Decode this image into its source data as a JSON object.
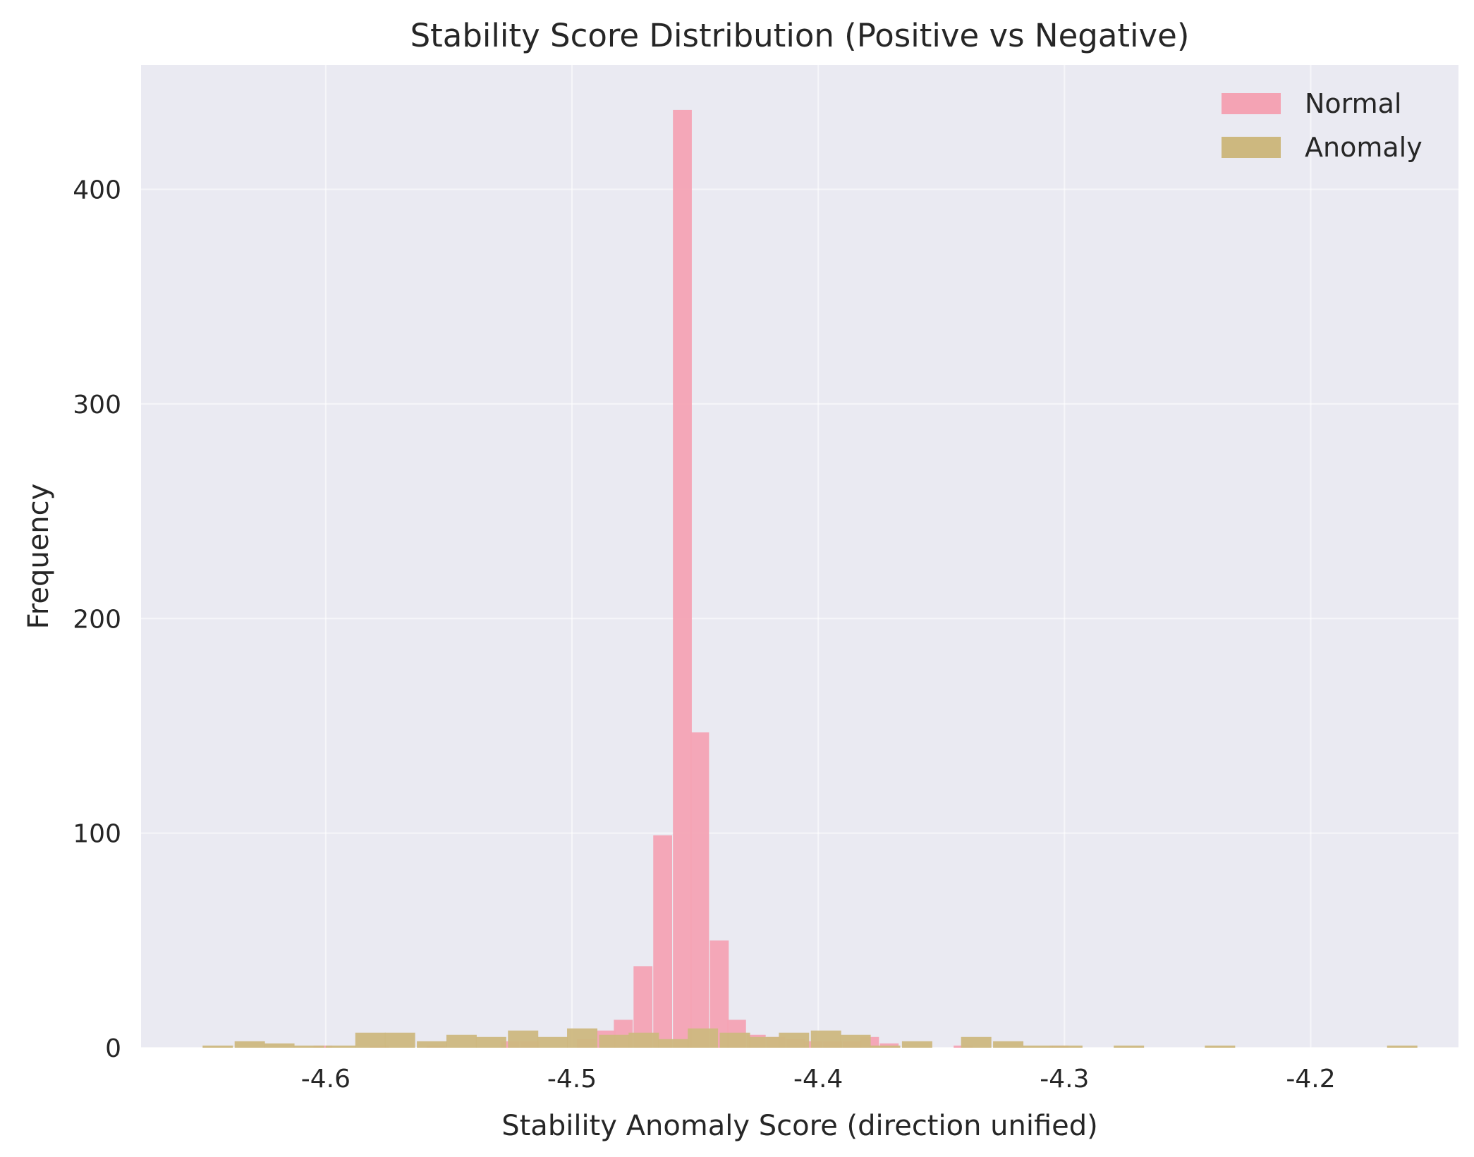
{
  "chart_data": {
    "type": "bar",
    "title": "Stability Score Distribution (Positive vs Negative)",
    "xlabel": "Stability Anomaly Score (direction unified)",
    "ylabel": "Frequency",
    "xlim": [
      -4.675,
      -4.14
    ],
    "ylim": [
      0,
      458
    ],
    "x_ticks": [
      -4.6,
      -4.5,
      -4.4,
      -4.3,
      -4.2
    ],
    "x_tick_labels": [
      "-4.6",
      "-4.5",
      "-4.4",
      "-4.3",
      "-4.2"
    ],
    "y_ticks": [
      0,
      100,
      200,
      300,
      400
    ],
    "y_tick_labels": [
      "0",
      "100",
      "200",
      "300",
      "400"
    ],
    "grid": true,
    "legend": "top-right",
    "series": [
      {
        "name": "Normal",
        "color": "#f4a3b4",
        "bin_width": 0.00766,
        "bin_left_edges": [
          -4.605,
          -4.582,
          -4.559,
          -4.529,
          -4.521,
          -4.498,
          -4.49,
          -4.483,
          -4.475,
          -4.467,
          -4.459,
          -4.452,
          -4.444,
          -4.437,
          -4.429,
          -4.421,
          -4.413,
          -4.406,
          -4.398,
          -4.39,
          -4.383,
          -4.375,
          -4.345,
          -4.306
        ],
        "values": [
          1,
          1,
          1,
          3,
          3,
          4,
          8,
          13,
          38,
          99,
          437,
          147,
          50,
          13,
          6,
          5,
          4,
          3,
          3,
          3,
          5,
          2,
          1,
          1
        ]
      },
      {
        "name": "Anomaly",
        "color": "#cdb87f",
        "bin_width": 0.01231,
        "bin_left_edges": [
          -4.65,
          -4.637,
          -4.625,
          -4.613,
          -4.6,
          -4.588,
          -4.576,
          -4.563,
          -4.551,
          -4.539,
          -4.526,
          -4.514,
          -4.502,
          -4.489,
          -4.477,
          -4.465,
          -4.453,
          -4.44,
          -4.428,
          -4.416,
          -4.403,
          -4.391,
          -4.379,
          -4.366,
          -4.354,
          -4.342,
          -4.329,
          -4.317,
          -4.305,
          -4.28,
          -4.243,
          -4.169
        ],
        "values": [
          1,
          3,
          2,
          1,
          1,
          7,
          7,
          3,
          6,
          5,
          8,
          5,
          9,
          6,
          7,
          4,
          9,
          7,
          5,
          7,
          8,
          6,
          1,
          3,
          0,
          5,
          3,
          1,
          1,
          1,
          1,
          1
        ]
      }
    ]
  }
}
